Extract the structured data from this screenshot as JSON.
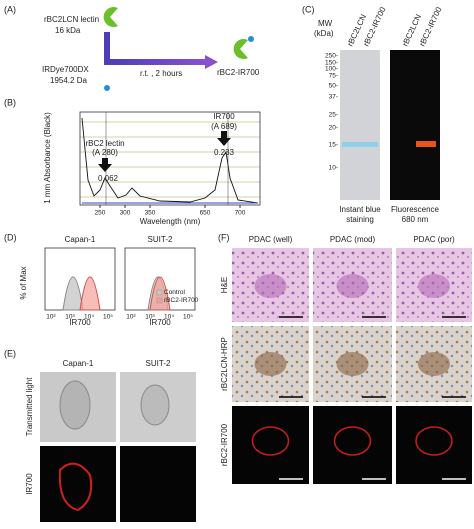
{
  "panelA": {
    "label": "(A)",
    "lectin": "rBC2LCN lectin",
    "lectin_mass": "16 kDa",
    "dye": "IRDye700DX",
    "dye_mass": "1954.2 Da",
    "condition": "r.t. , 2 hours",
    "product": "rBC2-IR700"
  },
  "panelB": {
    "label": "(B)",
    "y_label": "1 mm Absorbance (Black)",
    "x_label": "Wavelength (nm)",
    "x_ticks": [
      "250",
      "300",
      "350",
      "650",
      "700"
    ],
    "peak1_name": "rBC2 lectin",
    "peak1_wavelength": "(A 280)",
    "peak1_value": "0.062",
    "peak2_name": "IR700",
    "peak2_wavelength": "(A 689)",
    "peak2_value": "0.233"
  },
  "panelC": {
    "label": "(C)",
    "mw_line1": "MW",
    "mw_line2": "(kDa)",
    "lanes": [
      "rBC2LCN",
      "rBC2-IR700",
      "rBC2LCN",
      "rBC2-IR700"
    ],
    "markers": [
      "250-",
      "150-",
      "100-",
      "75-",
      "50-",
      "37-",
      "25-",
      "20-",
      "15-",
      "10-"
    ],
    "stain_line1": "Instant blue",
    "stain_line2": "staining",
    "fluor_line1": "Fluorescence",
    "fluor_line2": "680 nm"
  },
  "panelD": {
    "label": "(D)",
    "titles": [
      "Capan-1",
      "SUIT-2"
    ],
    "y_label": "% of Max",
    "x_label": "IR700",
    "x_ticks": [
      "10²",
      "10³",
      "10⁴",
      "10⁵"
    ],
    "legend": [
      "Control",
      "rBC2-IR700"
    ]
  },
  "panelE": {
    "label": "(E)",
    "titles": [
      "Capan-1",
      "SUIT-2"
    ],
    "rows": [
      "Transmitted light",
      "IR700"
    ]
  },
  "panelF": {
    "label": "(F)",
    "titles": [
      "PDAC (well)",
      "PDAC (mod)",
      "PDAC (por)"
    ],
    "rows": [
      "H&E",
      "rBC2LCN-HRP",
      "rBC2-IR700"
    ]
  }
}
